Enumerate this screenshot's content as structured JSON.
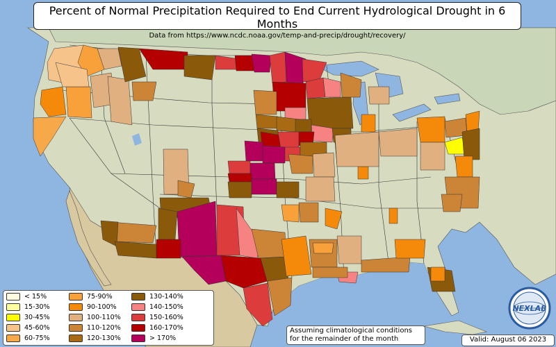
{
  "title": "Percent of Normal Precipitation Required to End Current Hydrological Drought in 6 Months",
  "subtitle": "Data from https://www.ncdc.noaa.gov/temp-and-precip/drought/recovery/",
  "legend": [
    {
      "label": "< 15%",
      "color": "#fffde0"
    },
    {
      "label": "15-30%",
      "color": "#ffffa0"
    },
    {
      "label": "30-45%",
      "color": "#ffff00"
    },
    {
      "label": "45-60%",
      "color": "#f6c48a"
    },
    {
      "label": "60-75%",
      "color": "#f7a94a"
    },
    {
      "label": "75-90%",
      "color": "#f8a13a"
    },
    {
      "label": "90-100%",
      "color": "#f58a0a"
    },
    {
      "label": "100-110%",
      "color": "#e0b080"
    },
    {
      "label": "110-120%",
      "color": "#cc8436"
    },
    {
      "label": "120-130%",
      "color": "#a86a12"
    },
    {
      "label": "130-140%",
      "color": "#8a5a0a"
    },
    {
      "label": "140-150%",
      "color": "#f78282"
    },
    {
      "label": "150-160%",
      "color": "#dc3c3c"
    },
    {
      "label": "160-170%",
      "color": "#b40000"
    },
    {
      "label": "> 170%",
      "color": "#b4005a"
    }
  ],
  "note": {
    "line1": "Assuming climatological conditions",
    "line2": "for the remainder of the month"
  },
  "valid": "Valid: August 06 2023",
  "logo_text": "NEXLAB"
}
